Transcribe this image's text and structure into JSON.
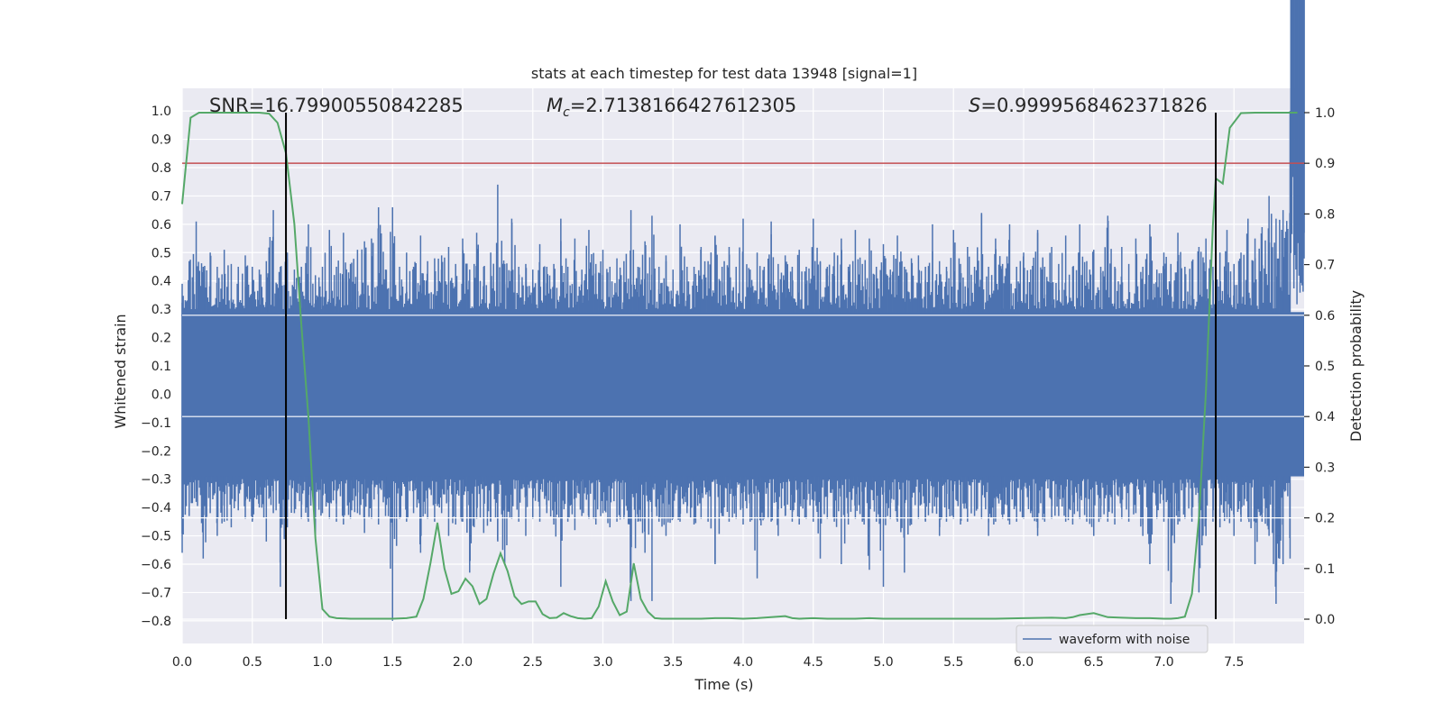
{
  "chart_data": {
    "type": "line",
    "title": "stats at each timestep for test data 13948 [signal=1]",
    "xlabel": "Time (s)",
    "ylabel": "Whitened strain",
    "y2label": "Detection probability",
    "xlim": [
      0.0,
      8.0
    ],
    "ylim": [
      -0.88,
      1.08
    ],
    "y2lim": [
      -0.048,
      1.048
    ],
    "xticks": [
      "0.0",
      "0.5",
      "1.0",
      "1.5",
      "2.0",
      "2.5",
      "3.0",
      "3.5",
      "4.0",
      "4.5",
      "5.0",
      "5.5",
      "6.0",
      "6.5",
      "7.0",
      "7.5"
    ],
    "yticks": [
      "1.0",
      "0.9",
      "0.8",
      "0.7",
      "0.6",
      "0.5",
      "0.4",
      "0.3",
      "0.2",
      "0.1",
      "0.0",
      "−0.1",
      "−0.2",
      "−0.3",
      "−0.4",
      "−0.5",
      "−0.6",
      "−0.7",
      "−0.8"
    ],
    "y2ticks": [
      "1.0",
      "0.9",
      "0.8",
      "0.7",
      "0.6",
      "0.5",
      "0.4",
      "0.3",
      "0.2",
      "0.1",
      "0.0"
    ],
    "annotations": {
      "snr": "SNR=16.79900550842285",
      "mc_sym": "M",
      "mc_sub": "c",
      "mc_val": "=2.7138166427612305",
      "s_sym": "S",
      "s_val": "=0.9999568462371826"
    },
    "threshold": 0.9,
    "vlines": [
      0.74,
      7.37
    ],
    "legend": {
      "label": "waveform with noise",
      "placement": "lower-right"
    },
    "colors": {
      "waveform": "#4c72b0",
      "probability": "#55a868",
      "threshold": "#c44e52",
      "vline": "#000000",
      "plot_bg": "#eaeaf2",
      "grid": "#ffffff"
    },
    "series": [
      {
        "name": "waveform with noise",
        "envelope_t": [
          0.0,
          0.05,
          0.1,
          0.15,
          0.2,
          0.25,
          0.3,
          0.35,
          0.4,
          0.45,
          0.5,
          0.55,
          0.6,
          0.65,
          0.7,
          0.75,
          0.8,
          0.85,
          0.9,
          0.95,
          1.0,
          1.05,
          1.1,
          1.15,
          1.2,
          1.25,
          1.3,
          1.35,
          1.4,
          1.45,
          1.5,
          1.55,
          1.6,
          1.65,
          1.7,
          1.75,
          1.8,
          1.85,
          1.9,
          1.95,
          2.0,
          2.05,
          2.1,
          2.15,
          2.2,
          2.25,
          2.3,
          2.35,
          2.4,
          2.45,
          2.5,
          2.55,
          2.6,
          2.65,
          2.7,
          2.75,
          2.8,
          2.85,
          2.9,
          2.95,
          3.0,
          3.05,
          3.1,
          3.15,
          3.2,
          3.25,
          3.3,
          3.35,
          3.4,
          3.45,
          3.5,
          3.55,
          3.6,
          3.65,
          3.7,
          3.75,
          3.8,
          3.85,
          3.9,
          3.95,
          4.0,
          4.05,
          4.1,
          4.15,
          4.2,
          4.25,
          4.3,
          4.35,
          4.4,
          4.45,
          4.5,
          4.55,
          4.6,
          4.65,
          4.7,
          4.75,
          4.8,
          4.85,
          4.9,
          4.95,
          5.0,
          5.05,
          5.1,
          5.15,
          5.2,
          5.25,
          5.3,
          5.35,
          5.4,
          5.45,
          5.5,
          5.55,
          5.6,
          5.65,
          5.7,
          5.75,
          5.8,
          5.85,
          5.9,
          5.95,
          6.0,
          6.05,
          6.1,
          6.15,
          6.2,
          6.25,
          6.3,
          6.35,
          6.4,
          6.45,
          6.5,
          6.55,
          6.6,
          6.65,
          6.7,
          6.75,
          6.8,
          6.85,
          6.9,
          6.95,
          7.0,
          7.05,
          7.1,
          7.15,
          7.2,
          7.25,
          7.3,
          7.35,
          7.4,
          7.45,
          7.5,
          7.55,
          7.6,
          7.65,
          7.7,
          7.75,
          7.8,
          7.85,
          7.9,
          7.95,
          8.0
        ],
        "envelope_max": [
          0.39,
          0.47,
          0.61,
          0.45,
          0.5,
          0.45,
          0.51,
          0.46,
          0.45,
          0.49,
          0.45,
          0.44,
          0.47,
          0.65,
          0.45,
          0.5,
          0.44,
          0.45,
          0.6,
          0.42,
          0.45,
          0.58,
          0.45,
          0.57,
          0.46,
          0.51,
          0.54,
          0.55,
          0.66,
          0.44,
          0.66,
          0.45,
          0.5,
          0.45,
          0.56,
          0.47,
          0.48,
          0.49,
          0.52,
          0.46,
          0.55,
          0.44,
          0.57,
          0.45,
          0.5,
          0.74,
          0.46,
          0.62,
          0.45,
          0.46,
          0.44,
          0.53,
          0.45,
          0.46,
          0.62,
          0.45,
          0.55,
          0.44,
          0.58,
          0.46,
          0.51,
          0.45,
          0.48,
          0.47,
          0.65,
          0.45,
          0.54,
          0.63,
          0.45,
          0.49,
          0.44,
          0.6,
          0.45,
          0.45,
          0.52,
          0.47,
          0.56,
          0.45,
          0.52,
          0.45,
          0.62,
          0.44,
          0.5,
          0.45,
          0.61,
          0.46,
          0.49,
          0.45,
          0.51,
          0.45,
          0.62,
          0.47,
          0.45,
          0.5,
          0.55,
          0.45,
          0.58,
          0.46,
          0.55,
          0.45,
          0.53,
          0.44,
          0.56,
          0.45,
          0.48,
          0.49,
          0.45,
          0.6,
          0.47,
          0.45,
          0.58,
          0.46,
          0.52,
          0.45,
          0.64,
          0.45,
          0.55,
          0.46,
          0.6,
          0.45,
          0.5,
          0.44,
          0.58,
          0.45,
          0.52,
          0.46,
          0.56,
          0.45,
          0.6,
          0.47,
          0.51,
          0.45,
          0.63,
          0.45,
          0.52,
          0.46,
          0.55,
          0.45,
          0.6,
          0.44,
          0.5,
          0.46,
          0.57,
          0.45,
          0.47,
          0.52,
          0.55,
          0.45,
          0.5,
          0.58,
          0.46,
          0.5,
          0.62,
          0.55,
          0.59,
          0.7,
          0.62,
          0.65,
          1.0,
          0.58,
          0.57
        ],
        "envelope_min": [
          -0.56,
          -0.43,
          -0.38,
          -0.58,
          -0.42,
          -0.5,
          -0.45,
          -0.47,
          -0.41,
          -0.44,
          -0.45,
          -0.4,
          -0.52,
          -0.42,
          -0.68,
          -0.47,
          -0.42,
          -0.44,
          -0.45,
          -0.5,
          -0.42,
          -0.44,
          -0.45,
          -0.46,
          -0.44,
          -0.42,
          -0.49,
          -0.44,
          -0.46,
          -0.43,
          -0.8,
          -0.44,
          -0.45,
          -0.42,
          -0.56,
          -0.44,
          -0.45,
          -0.42,
          -0.5,
          -0.46,
          -0.45,
          -0.63,
          -0.44,
          -0.49,
          -0.45,
          -0.52,
          -0.6,
          -0.44,
          -0.45,
          -0.5,
          -0.44,
          -0.45,
          -0.42,
          -0.46,
          -0.68,
          -0.45,
          -0.48,
          -0.43,
          -0.44,
          -0.46,
          -0.42,
          -0.47,
          -0.45,
          -0.44,
          -0.73,
          -0.45,
          -0.56,
          -0.73,
          -0.45,
          -0.5,
          -0.44,
          -0.45,
          -0.42,
          -0.46,
          -0.44,
          -0.45,
          -0.6,
          -0.43,
          -0.45,
          -0.44,
          -0.46,
          -0.45,
          -0.65,
          -0.44,
          -0.45,
          -0.5,
          -0.43,
          -0.45,
          -0.46,
          -0.44,
          -0.45,
          -0.58,
          -0.44,
          -0.45,
          -0.6,
          -0.46,
          -0.44,
          -0.45,
          -0.62,
          -0.45,
          -0.68,
          -0.44,
          -0.45,
          -0.63,
          -0.46,
          -0.44,
          -0.45,
          -0.42,
          -0.5,
          -0.45,
          -0.44,
          -0.46,
          -0.45,
          -0.43,
          -0.44,
          -0.5,
          -0.45,
          -0.44,
          -0.46,
          -0.45,
          -0.44,
          -0.42,
          -0.5,
          -0.45,
          -0.44,
          -0.43,
          -0.45,
          -0.46,
          -0.44,
          -0.45,
          -0.5,
          -0.44,
          -0.45,
          -0.46,
          -0.44,
          -0.45,
          -0.42,
          -0.5,
          -0.6,
          -0.44,
          -0.45,
          -0.74,
          -0.46,
          -0.44,
          -0.45,
          -0.7,
          -0.5,
          -0.45,
          -0.47,
          -0.44,
          -0.5,
          -0.45,
          -0.44,
          -0.6,
          -0.45,
          -0.5,
          -0.74,
          -0.6,
          -0.58
        ]
      },
      {
        "name": "Detection probability",
        "x": [
          0.0,
          0.06,
          0.12,
          0.3,
          0.55,
          0.62,
          0.68,
          0.74,
          0.8,
          0.85,
          0.9,
          0.95,
          1.0,
          1.05,
          1.1,
          1.2,
          1.3,
          1.4,
          1.5,
          1.6,
          1.67,
          1.72,
          1.77,
          1.82,
          1.87,
          1.92,
          1.97,
          2.02,
          2.07,
          2.12,
          2.17,
          2.22,
          2.27,
          2.32,
          2.37,
          2.42,
          2.47,
          2.52,
          2.57,
          2.62,
          2.67,
          2.72,
          2.77,
          2.82,
          2.87,
          2.92,
          2.97,
          3.02,
          3.07,
          3.12,
          3.17,
          3.22,
          3.27,
          3.32,
          3.37,
          3.42,
          3.47,
          3.52,
          3.57,
          3.62,
          3.7,
          3.8,
          3.9,
          4.0,
          4.1,
          4.2,
          4.3,
          4.35,
          4.4,
          4.5,
          4.6,
          4.7,
          4.8,
          4.9,
          5.0,
          5.2,
          5.4,
          5.6,
          5.8,
          6.0,
          6.2,
          6.3,
          6.35,
          6.4,
          6.5,
          6.6,
          6.7,
          6.8,
          6.9,
          7.0,
          7.05,
          7.1,
          7.15,
          7.2,
          7.25,
          7.3,
          7.35,
          7.37,
          7.42,
          7.47,
          7.55,
          7.65,
          7.75,
          7.85,
          7.95
        ],
        "y": [
          0.82,
          0.99,
          1.0,
          1.0,
          1.0,
          0.998,
          0.98,
          0.92,
          0.78,
          0.58,
          0.4,
          0.16,
          0.02,
          0.005,
          0.002,
          0.001,
          0.001,
          0.001,
          0.001,
          0.002,
          0.005,
          0.04,
          0.11,
          0.19,
          0.1,
          0.05,
          0.055,
          0.08,
          0.065,
          0.03,
          0.04,
          0.09,
          0.13,
          0.095,
          0.045,
          0.03,
          0.035,
          0.035,
          0.01,
          0.002,
          0.003,
          0.012,
          0.006,
          0.002,
          0.001,
          0.002,
          0.025,
          0.075,
          0.035,
          0.008,
          0.015,
          0.11,
          0.04,
          0.015,
          0.002,
          0.001,
          0.001,
          0.001,
          0.001,
          0.001,
          0.001,
          0.002,
          0.002,
          0.001,
          0.002,
          0.004,
          0.006,
          0.002,
          0.001,
          0.002,
          0.001,
          0.001,
          0.001,
          0.002,
          0.001,
          0.001,
          0.001,
          0.001,
          0.001,
          0.002,
          0.003,
          0.002,
          0.004,
          0.008,
          0.012,
          0.004,
          0.003,
          0.002,
          0.002,
          0.001,
          0.001,
          0.002,
          0.005,
          0.05,
          0.2,
          0.45,
          0.78,
          0.87,
          0.86,
          0.97,
          0.999,
          1.0,
          1.0,
          1.0,
          1.0
        ]
      }
    ]
  }
}
